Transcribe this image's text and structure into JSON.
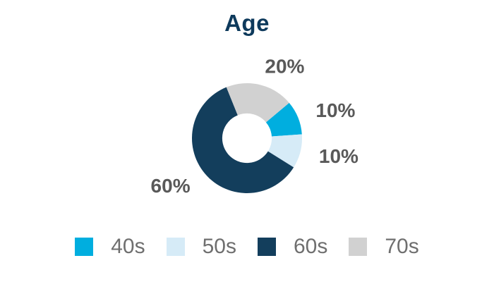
{
  "title": "Age",
  "chart_data": {
    "type": "pie",
    "subtype": "donut",
    "title": "Age",
    "categories": [
      "40s",
      "50s",
      "60s",
      "70s"
    ],
    "values": [
      10,
      10,
      60,
      20
    ],
    "unit": "percent",
    "data_labels": [
      "10%",
      "10%",
      "60%",
      "20%"
    ],
    "colors": [
      "#00AEDF",
      "#D6EBF7",
      "#133E5C",
      "#D1D1D1"
    ],
    "start_angle_deg": 50,
    "direction": "clockwise",
    "donut_hole_ratio": 0.45,
    "legend_position": "bottom",
    "legend_entries": [
      "40s",
      "50s",
      "60s",
      "70s"
    ]
  },
  "legend": {
    "items": [
      {
        "label": "40s",
        "color": "#00AEDF"
      },
      {
        "label": "50s",
        "color": "#D6EBF7"
      },
      {
        "label": "60s",
        "color": "#133E5C"
      },
      {
        "label": "70s",
        "color": "#D1D1D1"
      }
    ]
  },
  "styles": {
    "background": "#FFFFFF",
    "title_color": "#0E3A5C",
    "label_color": "#595959",
    "legend_text_color": "#6F6F6F"
  }
}
